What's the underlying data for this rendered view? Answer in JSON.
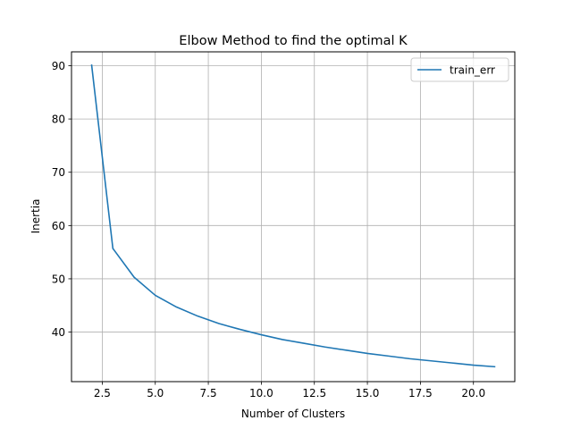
{
  "chart_data": {
    "type": "line",
    "title": "Elbow Method to find the optimal K",
    "xlabel": "Number of Clusters",
    "ylabel": "Inertia",
    "xlim": [
      1.05,
      21.95
    ],
    "ylim": [
      30.7,
      92.6
    ],
    "x_ticks": [
      2.5,
      5.0,
      7.5,
      10.0,
      12.5,
      15.0,
      17.5,
      20.0
    ],
    "x_tick_labels": [
      "2.5",
      "5.0",
      "7.5",
      "10.0",
      "12.5",
      "15.0",
      "17.5",
      "20.0"
    ],
    "y_ticks": [
      40,
      50,
      60,
      70,
      80,
      90
    ],
    "y_tick_labels": [
      "40",
      "50",
      "60",
      "70",
      "80",
      "90"
    ],
    "grid": true,
    "legend": "upper right",
    "series": [
      {
        "name": "train_err",
        "color": "#1f77b4",
        "x": [
          2,
          3,
          4,
          5,
          6,
          7,
          8,
          9,
          10,
          11,
          12,
          13,
          14,
          15,
          16,
          17,
          18,
          19,
          20,
          21
        ],
        "values": [
          90.1,
          55.7,
          50.3,
          46.9,
          44.7,
          43.0,
          41.6,
          40.5,
          39.5,
          38.6,
          37.9,
          37.2,
          36.6,
          36.0,
          35.5,
          35.0,
          34.6,
          34.2,
          33.8,
          33.5
        ]
      }
    ]
  }
}
